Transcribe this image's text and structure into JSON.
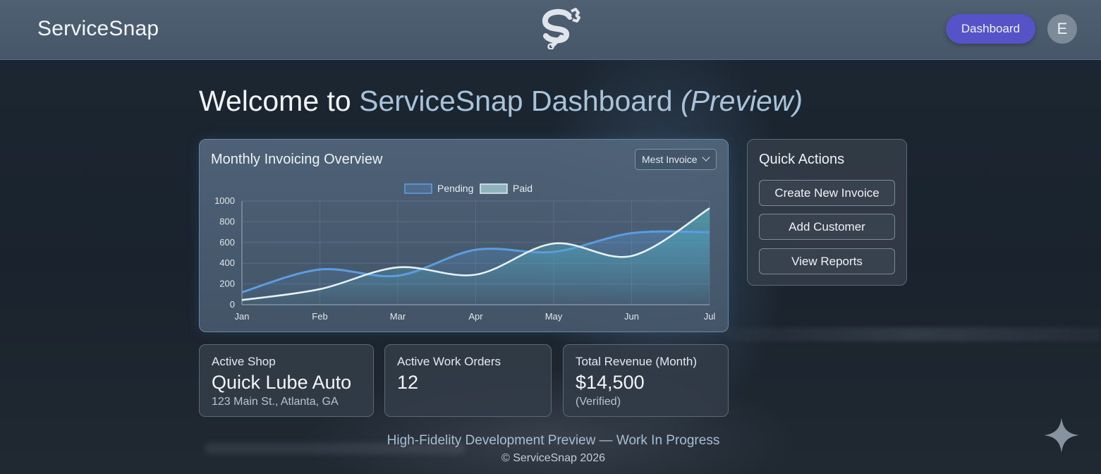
{
  "header": {
    "brand": "ServiceSnap",
    "dashboard_label": "Dashboard",
    "avatar_initial": "E",
    "logo_icon": "wrench-s-logo-icon"
  },
  "welcome": {
    "prefix": "Welcome to ",
    "accent": "ServiceSnap Dashboard",
    "suffix": "(Preview)"
  },
  "chart_card": {
    "title": "Monthly Invoicing Overview",
    "select_value": "Mest Invoice"
  },
  "chart_data": {
    "type": "line",
    "title": "Monthly Invoicing Overview",
    "categories": [
      "Jan",
      "Feb",
      "Mar",
      "Apr",
      "May",
      "Jun",
      "Jul"
    ],
    "series": [
      {
        "name": "Pending",
        "values": [
          120,
          340,
          280,
          530,
          510,
          690,
          700
        ],
        "color": "#5a9de0"
      },
      {
        "name": "Paid",
        "values": [
          45,
          150,
          360,
          290,
          590,
          470,
          930
        ],
        "color": "#e6f1f5"
      }
    ],
    "ylim": [
      0,
      1000
    ],
    "yticks": [
      "0",
      "200",
      "400",
      "600",
      "800",
      "1000"
    ],
    "legend": "top-center",
    "grid": true,
    "area_fill": "#4fa8b8"
  },
  "quick_actions": {
    "title": "Quick Actions",
    "buttons": [
      "Create New Invoice",
      "Add Customer",
      "View Reports"
    ]
  },
  "stats": {
    "shop": {
      "label": "Active Shop",
      "value": "Quick Lube Auto",
      "sub": "123 Main St., Atlanta, GA"
    },
    "orders": {
      "label": "Active Work Orders",
      "value": "12"
    },
    "revenue": {
      "label": "Total Revenue (Month)",
      "value": "$14,500",
      "sub": "(Verified)"
    }
  },
  "footer": {
    "line1": "High-Fidelity Development Preview — Work In Progress",
    "line2": "© ServiceSnap 2026"
  },
  "colors": {
    "accent_button": "#5553c7",
    "topbar": "#4b5b6e",
    "heading_accent": "#a9c3da"
  }
}
